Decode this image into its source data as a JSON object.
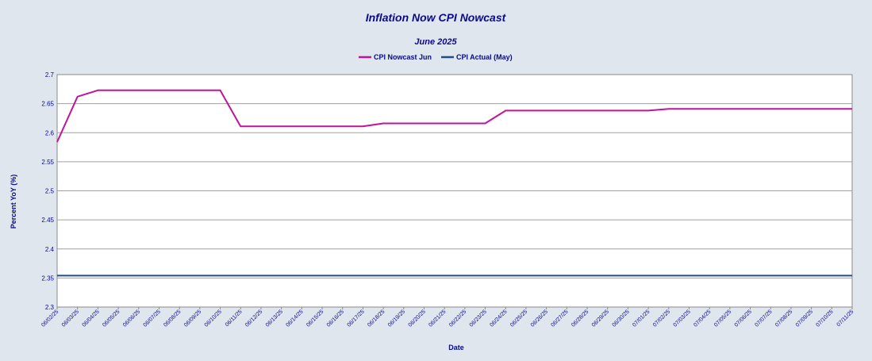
{
  "chart_data": {
    "type": "line",
    "title": "Inflation Now CPI Nowcast",
    "subtitle": "June 2025",
    "xlabel": "Date",
    "ylabel": "Percent YoY (%)",
    "ylim": [
      2.3,
      2.7
    ],
    "yticks": [
      "2.3",
      "2.35",
      "2.4",
      "2.45",
      "2.5",
      "2.55",
      "2.6",
      "2.65",
      "2.7"
    ],
    "grid": true,
    "legend_position": "top-center",
    "x": [
      "06/02/25",
      "06/03/25",
      "06/04/25",
      "06/05/25",
      "06/06/25",
      "06/07/25",
      "06/08/25",
      "06/09/25",
      "06/10/25",
      "06/11/25",
      "06/12/25",
      "06/13/25",
      "06/14/25",
      "06/15/25",
      "06/16/25",
      "06/17/25",
      "06/18/25",
      "06/19/25",
      "06/20/25",
      "06/21/25",
      "06/22/25",
      "06/23/25",
      "06/24/25",
      "06/25/25",
      "06/26/25",
      "06/27/25",
      "06/28/25",
      "06/29/25",
      "06/30/25",
      "07/01/25",
      "07/02/25",
      "07/03/25",
      "07/04/25",
      "07/05/25",
      "07/06/25",
      "07/07/25",
      "07/08/25",
      "07/09/25",
      "07/10/25",
      "07/11/25"
    ],
    "series": [
      {
        "name": "CPI Nowcast Jun",
        "color": "#c0149a",
        "values": [
          2.584,
          2.662,
          2.673,
          2.673,
          2.673,
          2.673,
          2.673,
          2.673,
          2.673,
          2.611,
          2.611,
          2.611,
          2.611,
          2.611,
          2.611,
          2.611,
          2.616,
          2.616,
          2.616,
          2.616,
          2.616,
          2.616,
          2.638,
          2.638,
          2.638,
          2.638,
          2.638,
          2.638,
          2.638,
          2.638,
          2.641,
          2.641,
          2.641,
          2.641,
          2.641,
          2.641,
          2.641,
          2.641,
          2.641,
          2.641
        ]
      },
      {
        "name": "CPI Actual (May)",
        "color": "#1f4e8c",
        "values": [
          2.354,
          2.354,
          2.354,
          2.354,
          2.354,
          2.354,
          2.354,
          2.354,
          2.354,
          2.354,
          2.354,
          2.354,
          2.354,
          2.354,
          2.354,
          2.354,
          2.354,
          2.354,
          2.354,
          2.354,
          2.354,
          2.354,
          2.354,
          2.354,
          2.354,
          2.354,
          2.354,
          2.354,
          2.354,
          2.354,
          2.354,
          2.354,
          2.354,
          2.354,
          2.354,
          2.354,
          2.354,
          2.354,
          2.354,
          2.354
        ]
      }
    ]
  }
}
